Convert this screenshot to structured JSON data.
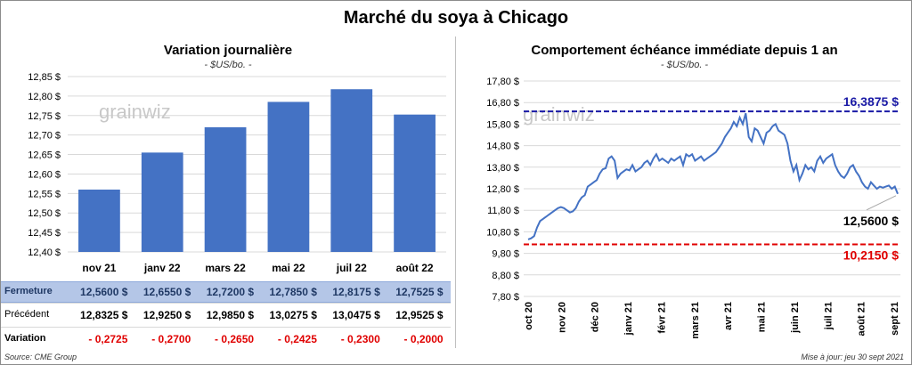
{
  "title": "Marché du soya à Chicago",
  "left_chart": {
    "title": "Variation  journalière",
    "unit": "- $US/bo. -",
    "watermark": "grainwiz"
  },
  "right_chart": {
    "title": "Comportement  échéance immédiate depuis 1 an",
    "unit": "- $US/bo. -",
    "watermark": "grainwiz"
  },
  "table": {
    "row_labels": [
      "Fermeture",
      "Précédent",
      "Variation"
    ],
    "fermeture": [
      "12,5600  $",
      "12,6550  $",
      "12,7200  $",
      "12,7850  $",
      "12,8175  $",
      "12,7525  $"
    ],
    "precedent": [
      "12,8325  $",
      "12,9250  $",
      "12,9850  $",
      "13,0275  $",
      "13,0475  $",
      "12,9525  $"
    ],
    "variation": [
      "- 0,2725",
      "- 0,2700",
      "- 0,2650",
      "- 0,2425",
      "- 0,2300",
      "- 0,2000"
    ]
  },
  "footer": {
    "source": "Source: CME Group",
    "updated": "Mise à jour: jeu 30 sept 2021"
  },
  "colors": {
    "bar": "#4472c4",
    "line": "#4472c4",
    "high_line": "#1a1aa6",
    "low_line": "#e00000",
    "table_header": "#b4c6e7",
    "negative": "#e00000"
  },
  "chart_data": [
    {
      "type": "bar",
      "categories": [
        "nov 21",
        "janv 22",
        "mars 22",
        "mai 22",
        "juil 22",
        "août 22"
      ],
      "values": [
        12.56,
        12.655,
        12.72,
        12.785,
        12.8175,
        12.7525
      ],
      "ylim": [
        12.4,
        12.85
      ],
      "yticks": [
        "12,40 $",
        "12,45 $",
        "12,50 $",
        "12,55 $",
        "12,60 $",
        "12,65 $",
        "12,70 $",
        "12,75 $",
        "12,80 $",
        "12,85 $"
      ],
      "ytick_values": [
        12.4,
        12.45,
        12.5,
        12.55,
        12.6,
        12.65,
        12.7,
        12.75,
        12.8,
        12.85
      ],
      "grid": true
    },
    {
      "type": "line",
      "ylim": [
        7.8,
        17.8
      ],
      "yticks": [
        "7,80 $",
        "8,80 $",
        "9,80 $",
        "10,80 $",
        "11,80 $",
        "12,80 $",
        "13,80 $",
        "14,80 $",
        "15,80 $",
        "16,80 $",
        "17,80 $"
      ],
      "ytick_values": [
        7.8,
        8.8,
        9.8,
        10.8,
        11.8,
        12.8,
        13.8,
        14.8,
        15.8,
        16.8,
        17.8
      ],
      "x_labels": [
        "oct 20",
        "nov 20",
        "déc 20",
        "janv 21",
        "févr 21",
        "mars 21",
        "avr 21",
        "mai 21",
        "juin 21",
        "juil 21",
        "août 21",
        "sept 21"
      ],
      "values": [
        10.45,
        10.5,
        10.6,
        11.0,
        11.3,
        11.4,
        11.5,
        11.6,
        11.7,
        11.8,
        11.9,
        11.95,
        11.9,
        11.8,
        11.7,
        11.75,
        11.9,
        12.2,
        12.4,
        12.5,
        12.9,
        13.0,
        13.1,
        13.2,
        13.5,
        13.7,
        13.75,
        14.2,
        14.3,
        14.1,
        13.3,
        13.5,
        13.6,
        13.7,
        13.65,
        13.9,
        13.6,
        13.7,
        13.8,
        14.0,
        14.1,
        13.9,
        14.2,
        14.4,
        14.1,
        14.2,
        14.1,
        14.0,
        14.2,
        14.1,
        14.2,
        14.3,
        13.9,
        14.4,
        14.3,
        14.4,
        14.1,
        14.2,
        14.3,
        14.1,
        14.2,
        14.3,
        14.4,
        14.5,
        14.7,
        14.9,
        15.2,
        15.4,
        15.6,
        15.9,
        15.7,
        16.1,
        15.8,
        16.3,
        15.2,
        15.0,
        15.6,
        15.5,
        15.2,
        14.9,
        15.4,
        15.5,
        15.7,
        15.8,
        15.5,
        15.4,
        15.3,
        14.9,
        14.1,
        13.6,
        13.9,
        13.2,
        13.5,
        13.9,
        13.7,
        13.8,
        13.6,
        14.1,
        14.3,
        14.0,
        14.2,
        14.3,
        14.4,
        13.9,
        13.6,
        13.4,
        13.3,
        13.5,
        13.8,
        13.9,
        13.6,
        13.4,
        13.1,
        12.9,
        12.8,
        13.1,
        12.95,
        12.8,
        12.9,
        12.85,
        12.9,
        12.95,
        12.8,
        12.9,
        12.56
      ],
      "high_value": 16.3875,
      "high_label": "16,3875 $",
      "low_value": 10.215,
      "low_label": "10,2150 $",
      "last_label": "12,5600 $"
    }
  ]
}
